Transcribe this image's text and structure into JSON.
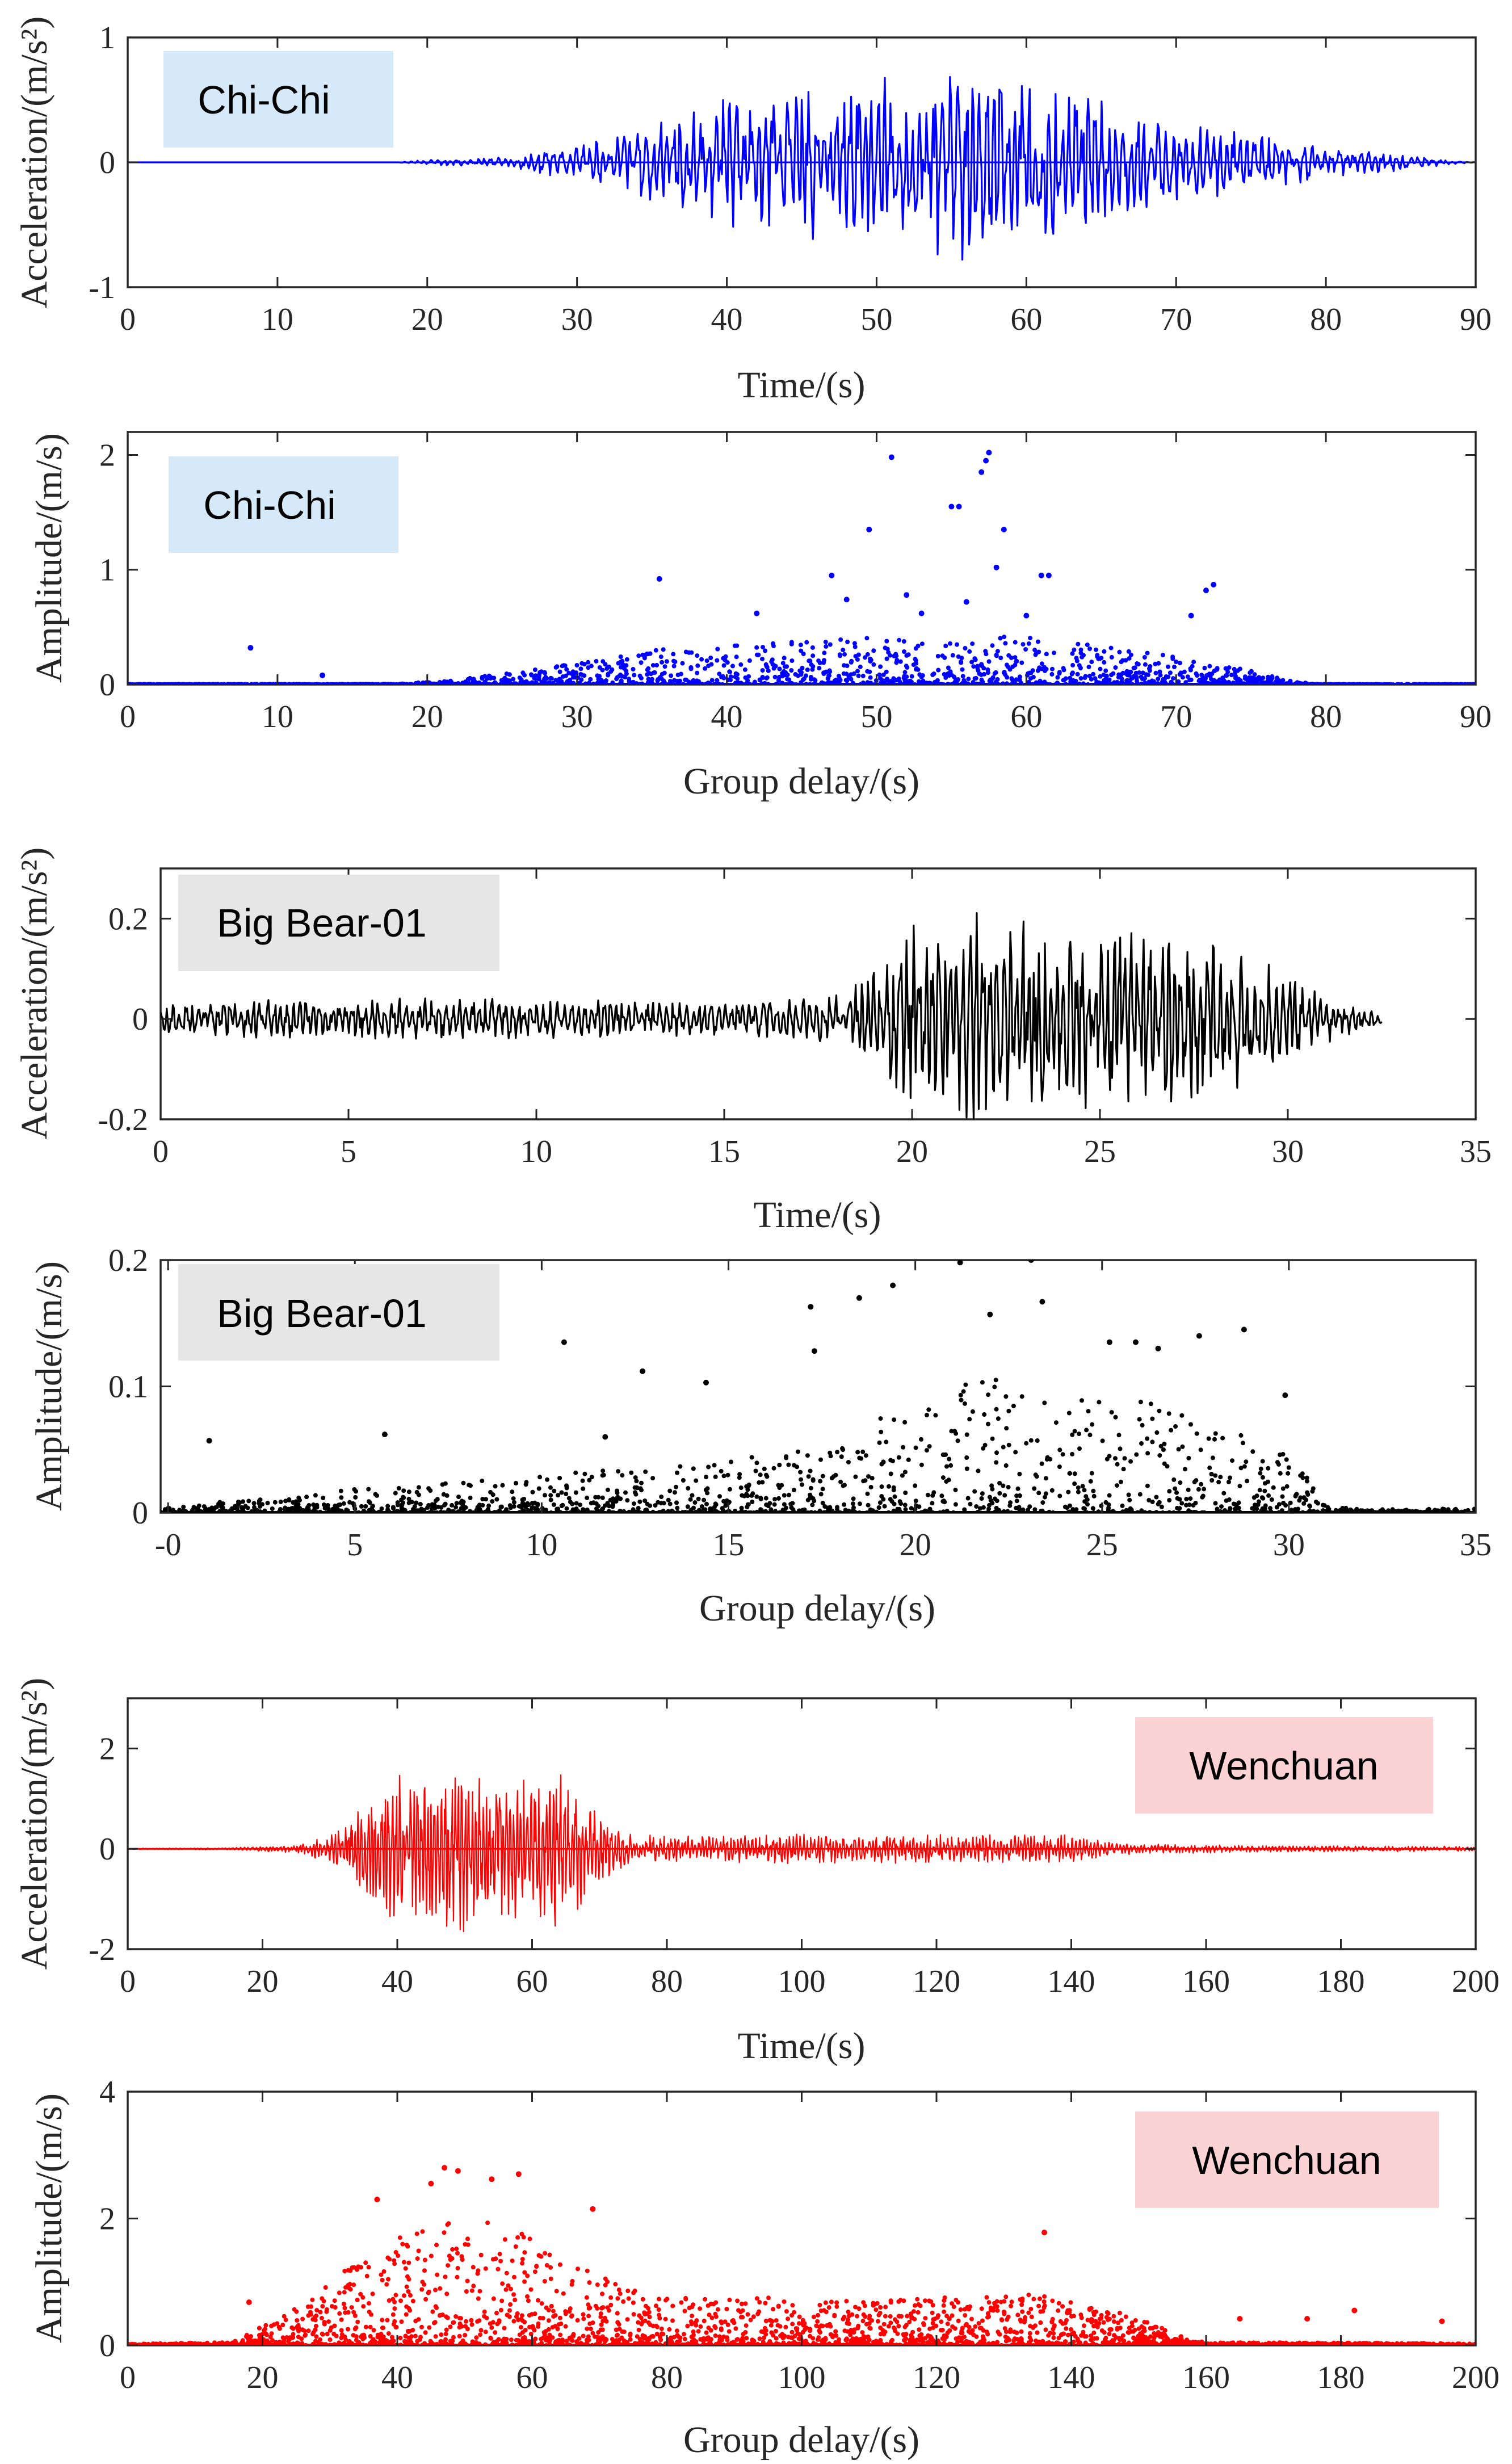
{
  "chart_data": [
    {
      "type": "line",
      "label": "Chi-Chi",
      "color": "#0000ff",
      "label_bg": "#d6e9f8",
      "xlabel": "Time/(s)",
      "ylabel": "Acceleration/(m/s²)",
      "xlim": [
        0,
        90
      ],
      "ylim": [
        -1,
        1
      ],
      "xticks": [
        0,
        10,
        20,
        30,
        40,
        50,
        60,
        70,
        80,
        90
      ],
      "yticks": [
        -1,
        0,
        1
      ],
      "yticklabels": [
        "-1",
        "0",
        "1"
      ],
      "label_position": "top-left",
      "envelope": [
        [
          0,
          0
        ],
        [
          18,
          0
        ],
        [
          20,
          0.02
        ],
        [
          25,
          0.04
        ],
        [
          30,
          0.14
        ],
        [
          35,
          0.32
        ],
        [
          40,
          0.55
        ],
        [
          45,
          0.62
        ],
        [
          50,
          0.72
        ],
        [
          55,
          0.78
        ],
        [
          58,
          0.8
        ],
        [
          62,
          0.66
        ],
        [
          66,
          0.48
        ],
        [
          70,
          0.34
        ],
        [
          75,
          0.24
        ],
        [
          80,
          0.13
        ],
        [
          85,
          0.07
        ],
        [
          88,
          0.02
        ],
        [
          90,
          0
        ]
      ],
      "duration": 90
    },
    {
      "type": "scatter",
      "label": "Chi-Chi",
      "color": "#0000ff",
      "label_bg": "#d6e9f8",
      "xlabel": "Group delay/(s)",
      "ylabel": "Amplitude/(m/s)",
      "xlim": [
        0,
        90
      ],
      "ylim": [
        0,
        2.2
      ],
      "xticks": [
        0,
        10,
        20,
        30,
        40,
        50,
        60,
        70,
        80,
        90
      ],
      "yticks": [
        0,
        1,
        2
      ],
      "yticklabels": [
        "0",
        "1",
        "2"
      ],
      "label_position": "top-left",
      "envelope": [
        [
          0,
          0.003
        ],
        [
          18,
          0.005
        ],
        [
          22,
          0.04
        ],
        [
          28,
          0.15
        ],
        [
          35,
          0.3
        ],
        [
          40,
          0.35
        ],
        [
          45,
          0.38
        ],
        [
          50,
          0.42
        ],
        [
          55,
          0.45
        ],
        [
          60,
          0.42
        ],
        [
          65,
          0.33
        ],
        [
          70,
          0.25
        ],
        [
          75,
          0.12
        ],
        [
          78,
          0.02
        ],
        [
          80,
          0.003
        ],
        [
          90,
          0.003
        ]
      ],
      "highlights": [
        [
          8.2,
          0.32
        ],
        [
          13,
          0.08
        ],
        [
          35.5,
          0.92
        ],
        [
          42,
          0.62
        ],
        [
          47,
          0.95
        ],
        [
          48,
          0.74
        ],
        [
          49.5,
          1.35
        ],
        [
          51,
          1.98
        ],
        [
          52,
          0.78
        ],
        [
          53,
          0.62
        ],
        [
          55,
          1.55
        ],
        [
          55.5,
          1.55
        ],
        [
          56,
          0.72
        ],
        [
          57,
          1.85
        ],
        [
          57.3,
          1.95
        ],
        [
          57.5,
          2.02
        ],
        [
          58,
          1.02
        ],
        [
          58.5,
          1.35
        ],
        [
          60,
          0.6
        ],
        [
          61,
          0.95
        ],
        [
          61.5,
          0.95
        ],
        [
          72,
          0.82
        ],
        [
          72.5,
          0.87
        ],
        [
          71,
          0.6
        ]
      ],
      "n_points": 2000
    },
    {
      "type": "line",
      "label": "Big Bear-01",
      "color": "#000000",
      "label_bg": "#e6e6e6",
      "xlabel": "Time/(s)",
      "ylabel": "Acceleration/(m/s²)",
      "xlim": [
        0,
        35
      ],
      "ylim": [
        -0.2,
        0.3
      ],
      "xticks": [
        0,
        5,
        10,
        15,
        20,
        25,
        30,
        35
      ],
      "yticks": [
        -0.2,
        0,
        0.2
      ],
      "yticklabels": [
        "-0.2",
        "0",
        "0.2"
      ],
      "label_position": "top-left",
      "envelope": [
        [
          0,
          0.03
        ],
        [
          5,
          0.045
        ],
        [
          10,
          0.04
        ],
        [
          15,
          0.035
        ],
        [
          18,
          0.05
        ],
        [
          19,
          0.1
        ],
        [
          20,
          0.19
        ],
        [
          22,
          0.22
        ],
        [
          24,
          0.18
        ],
        [
          25.5,
          0.22
        ],
        [
          27,
          0.18
        ],
        [
          29,
          0.13
        ],
        [
          30,
          0.09
        ],
        [
          31,
          0.05
        ],
        [
          32.5,
          0.01
        ]
      ],
      "duration": 32.5
    },
    {
      "type": "scatter",
      "label": "Big Bear-01",
      "color": "#000000",
      "label_bg": "#e6e6e6",
      "xlabel": "Group delay/(s)",
      "ylabel": "Amplitude/(m/s)",
      "xlim": [
        -0.2,
        35
      ],
      "ylim": [
        0,
        0.2
      ],
      "xticks": [
        0,
        5,
        10,
        15,
        20,
        25,
        30,
        35
      ],
      "xticklabels": [
        "-0",
        "5",
        "10",
        "15",
        "20",
        "25",
        "30",
        "35"
      ],
      "yticks": [
        0,
        0.1,
        0.2
      ],
      "yticklabels": [
        "0",
        "0.1",
        "0.2"
      ],
      "label_position": "top-left",
      "envelope": [
        [
          -0.2,
          0.004
        ],
        [
          2,
          0.01
        ],
        [
          5,
          0.02
        ],
        [
          10,
          0.03
        ],
        [
          15,
          0.04
        ],
        [
          18,
          0.06
        ],
        [
          20,
          0.09
        ],
        [
          22,
          0.11
        ],
        [
          24,
          0.1
        ],
        [
          26,
          0.09
        ],
        [
          28,
          0.07
        ],
        [
          30,
          0.05
        ],
        [
          31,
          0.005
        ],
        [
          32,
          0.003
        ]
      ],
      "highlights": [
        [
          1.1,
          0.057
        ],
        [
          5.8,
          0.062
        ],
        [
          10.6,
          0.135
        ],
        [
          11.7,
          0.06
        ],
        [
          12.7,
          0.112
        ],
        [
          14.4,
          0.103
        ],
        [
          17.2,
          0.163
        ],
        [
          17.3,
          0.128
        ],
        [
          18.5,
          0.17
        ],
        [
          19.4,
          0.18
        ],
        [
          21.2,
          0.198
        ],
        [
          22,
          0.157
        ],
        [
          23.1,
          0.2
        ],
        [
          23.4,
          0.167
        ],
        [
          25.2,
          0.135
        ],
        [
          25.9,
          0.135
        ],
        [
          26.5,
          0.13
        ],
        [
          27.6,
          0.14
        ],
        [
          28.8,
          0.145
        ],
        [
          29.9,
          0.093
        ]
      ],
      "n_points": 1500
    },
    {
      "type": "line",
      "label": "Wenchuan",
      "color": "#ff0000",
      "label_bg": "#fbd3d4",
      "xlabel": "Time/(s)",
      "ylabel": "Acceleration/(m/s²)",
      "xlim": [
        0,
        200
      ],
      "ylim": [
        -2,
        3
      ],
      "xticks": [
        0,
        20,
        40,
        60,
        80,
        100,
        120,
        140,
        160,
        180,
        200
      ],
      "yticks": [
        -2,
        0,
        2
      ],
      "yticklabels": [
        "-2",
        "0",
        "2"
      ],
      "label_position": "top-right",
      "envelope": [
        [
          0,
          0.01
        ],
        [
          15,
          0.02
        ],
        [
          25,
          0.08
        ],
        [
          30,
          0.3
        ],
        [
          35,
          0.9
        ],
        [
          40,
          1.6
        ],
        [
          45,
          1.5
        ],
        [
          50,
          1.75
        ],
        [
          55,
          1.4
        ],
        [
          60,
          1.55
        ],
        [
          65,
          1.6
        ],
        [
          70,
          0.7
        ],
        [
          75,
          0.32
        ],
        [
          80,
          0.25
        ],
        [
          100,
          0.3
        ],
        [
          120,
          0.3
        ],
        [
          140,
          0.28
        ],
        [
          145,
          0.15
        ],
        [
          150,
          0.1
        ],
        [
          170,
          0.06
        ],
        [
          200,
          0.05
        ]
      ],
      "duration": 200
    },
    {
      "type": "scatter",
      "label": "Wenchuan",
      "color": "#ff0000",
      "label_bg": "#fbd3d4",
      "xlabel": "Group delay/(s)",
      "ylabel": "Amplitude/(m/s)",
      "xlim": [
        0,
        200
      ],
      "ylim": [
        0,
        4
      ],
      "xticks": [
        0,
        20,
        40,
        60,
        80,
        100,
        120,
        140,
        160,
        180,
        200
      ],
      "yticks": [
        0,
        2,
        4
      ],
      "yticklabels": [
        "0",
        "2",
        "4"
      ],
      "label_position": "top-right",
      "envelope": [
        [
          0,
          0.02
        ],
        [
          15,
          0.05
        ],
        [
          20,
          0.3
        ],
        [
          25,
          0.6
        ],
        [
          30,
          1.0
        ],
        [
          35,
          1.4
        ],
        [
          40,
          1.7
        ],
        [
          45,
          1.9
        ],
        [
          50,
          2.0
        ],
        [
          55,
          1.9
        ],
        [
          60,
          1.7
        ],
        [
          65,
          1.4
        ],
        [
          70,
          1.1
        ],
        [
          75,
          0.9
        ],
        [
          80,
          0.75
        ],
        [
          100,
          0.75
        ],
        [
          120,
          0.75
        ],
        [
          135,
          0.8
        ],
        [
          140,
          0.7
        ],
        [
          150,
          0.45
        ],
        [
          155,
          0.2
        ],
        [
          160,
          0.05
        ],
        [
          200,
          0.03
        ]
      ],
      "highlights": [
        [
          18,
          0.68
        ],
        [
          37,
          2.3
        ],
        [
          45,
          2.55
        ],
        [
          47,
          2.8
        ],
        [
          49,
          2.75
        ],
        [
          54,
          2.62
        ],
        [
          58,
          2.7
        ],
        [
          69,
          2.15
        ],
        [
          136,
          1.78
        ],
        [
          165,
          0.42
        ],
        [
          175,
          0.42
        ],
        [
          182,
          0.55
        ],
        [
          195,
          0.38
        ]
      ],
      "n_points": 3000
    }
  ]
}
